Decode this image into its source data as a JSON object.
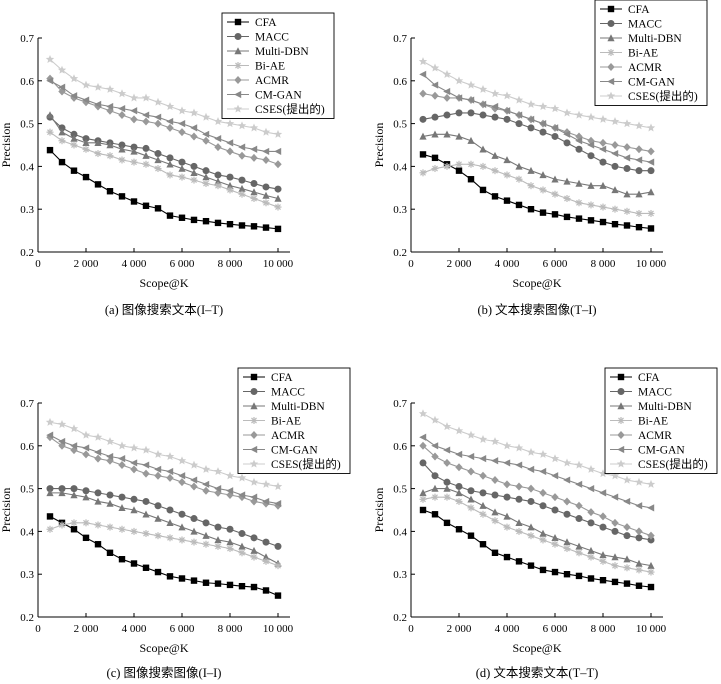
{
  "chart_data": [
    {
      "type": "line",
      "caption": "(a) 图像搜索文本(I–T)",
      "xlabel": "Scope@K",
      "ylabel": "Precision",
      "xlim": [
        0,
        10500
      ],
      "ylim": [
        0.2,
        0.7
      ],
      "xticks": [
        0,
        2000,
        4000,
        6000,
        8000,
        10000
      ],
      "xtick_labels": [
        "0",
        "2 000",
        "4 000",
        "6 000",
        "8 000",
        "10 000"
      ],
      "yticks": [
        0.2,
        0.3,
        0.4,
        0.5,
        0.6,
        0.7
      ],
      "ytick_labels": [
        "0.2",
        "0.3",
        "0.4",
        "0.5",
        "0.6",
        "0.7"
      ],
      "legend": "top-right",
      "x": [
        500,
        1000,
        1500,
        2000,
        2500,
        3000,
        3500,
        4000,
        4500,
        5000,
        5500,
        6000,
        6500,
        7000,
        7500,
        8000,
        8500,
        9000,
        9500,
        10000
      ],
      "series": [
        {
          "name": "CFA",
          "values": [
            0.438,
            0.41,
            0.39,
            0.375,
            0.358,
            0.342,
            0.33,
            0.318,
            0.308,
            0.302,
            0.285,
            0.28,
            0.275,
            0.272,
            0.268,
            0.265,
            0.262,
            0.26,
            0.257,
            0.254
          ]
        },
        {
          "name": "MACC",
          "values": [
            0.515,
            0.49,
            0.475,
            0.465,
            0.46,
            0.455,
            0.45,
            0.445,
            0.442,
            0.43,
            0.42,
            0.41,
            0.4,
            0.39,
            0.38,
            0.375,
            0.368,
            0.36,
            0.352,
            0.347
          ]
        },
        {
          "name": "Multi-DBN",
          "values": [
            0.52,
            0.48,
            0.465,
            0.455,
            0.455,
            0.45,
            0.44,
            0.435,
            0.425,
            0.415,
            0.405,
            0.395,
            0.385,
            0.375,
            0.365,
            0.355,
            0.348,
            0.34,
            0.332,
            0.325
          ]
        },
        {
          "name": "Bi-AE",
          "values": [
            0.48,
            0.46,
            0.45,
            0.44,
            0.43,
            0.425,
            0.415,
            0.41,
            0.405,
            0.395,
            0.38,
            0.375,
            0.368,
            0.36,
            0.355,
            0.345,
            0.335,
            0.325,
            0.315,
            0.305
          ]
        },
        {
          "name": "ACMR",
          "values": [
            0.605,
            0.575,
            0.56,
            0.55,
            0.54,
            0.53,
            0.52,
            0.51,
            0.505,
            0.5,
            0.49,
            0.48,
            0.47,
            0.46,
            0.445,
            0.435,
            0.425,
            0.42,
            0.415,
            0.405
          ]
        },
        {
          "name": "CM-GAN",
          "values": [
            0.6,
            0.585,
            0.565,
            0.555,
            0.545,
            0.54,
            0.535,
            0.53,
            0.52,
            0.515,
            0.505,
            0.5,
            0.49,
            0.475,
            0.465,
            0.455,
            0.445,
            0.44,
            0.435,
            0.435
          ]
        },
        {
          "name": "CSES(提出的)",
          "values": [
            0.65,
            0.625,
            0.605,
            0.59,
            0.585,
            0.58,
            0.57,
            0.56,
            0.56,
            0.55,
            0.54,
            0.53,
            0.525,
            0.515,
            0.505,
            0.5,
            0.495,
            0.49,
            0.48,
            0.475
          ]
        }
      ]
    },
    {
      "type": "line",
      "caption": "(b) 文本搜索图像(T–I)",
      "xlabel": "Scope@K",
      "ylabel": "Precision",
      "xlim": [
        0,
        10500
      ],
      "ylim": [
        0.2,
        0.7
      ],
      "xticks": [
        0,
        2000,
        4000,
        6000,
        8000,
        10000
      ],
      "xtick_labels": [
        "0",
        "2 000",
        "4 000",
        "6 000",
        "8 000",
        "10 000"
      ],
      "yticks": [
        0.2,
        0.3,
        0.4,
        0.5,
        0.6,
        0.7
      ],
      "ytick_labels": [
        "0.2",
        "0.3",
        "0.4",
        "0.5",
        "0.6",
        "0.7"
      ],
      "legend": "top-right",
      "x": [
        500,
        1000,
        1500,
        2000,
        2500,
        3000,
        3500,
        4000,
        4500,
        5000,
        5500,
        6000,
        6500,
        7000,
        7500,
        8000,
        8500,
        9000,
        9500,
        10000
      ],
      "series": [
        {
          "name": "CFA",
          "values": [
            0.428,
            0.42,
            0.405,
            0.39,
            0.37,
            0.345,
            0.33,
            0.32,
            0.31,
            0.3,
            0.292,
            0.288,
            0.282,
            0.278,
            0.274,
            0.27,
            0.265,
            0.262,
            0.258,
            0.255
          ]
        },
        {
          "name": "MACC",
          "values": [
            0.51,
            0.515,
            0.52,
            0.525,
            0.525,
            0.52,
            0.515,
            0.51,
            0.5,
            0.49,
            0.48,
            0.47,
            0.455,
            0.44,
            0.425,
            0.41,
            0.4,
            0.395,
            0.39,
            0.39
          ]
        },
        {
          "name": "Multi-DBN",
          "values": [
            0.47,
            0.475,
            0.475,
            0.47,
            0.46,
            0.44,
            0.425,
            0.415,
            0.4,
            0.39,
            0.38,
            0.37,
            0.365,
            0.36,
            0.355,
            0.355,
            0.345,
            0.335,
            0.335,
            0.34
          ]
        },
        {
          "name": "Bi-AE",
          "values": [
            0.385,
            0.395,
            0.4,
            0.405,
            0.405,
            0.4,
            0.39,
            0.38,
            0.37,
            0.355,
            0.345,
            0.335,
            0.325,
            0.315,
            0.31,
            0.305,
            0.3,
            0.295,
            0.29,
            0.29
          ]
        },
        {
          "name": "ACMR",
          "values": [
            0.57,
            0.565,
            0.56,
            0.56,
            0.555,
            0.545,
            0.535,
            0.53,
            0.52,
            0.51,
            0.5,
            0.49,
            0.48,
            0.47,
            0.46,
            0.455,
            0.45,
            0.445,
            0.44,
            0.435
          ]
        },
        {
          "name": "CM-GAN",
          "values": [
            0.615,
            0.59,
            0.575,
            0.56,
            0.555,
            0.545,
            0.54,
            0.53,
            0.52,
            0.51,
            0.5,
            0.49,
            0.475,
            0.46,
            0.45,
            0.44,
            0.43,
            0.42,
            0.415,
            0.41
          ]
        },
        {
          "name": "CSES(提出的)",
          "values": [
            0.645,
            0.63,
            0.615,
            0.6,
            0.59,
            0.58,
            0.57,
            0.565,
            0.555,
            0.545,
            0.54,
            0.535,
            0.525,
            0.52,
            0.515,
            0.51,
            0.505,
            0.5,
            0.495,
            0.49
          ]
        }
      ]
    },
    {
      "type": "line",
      "caption": "(c) 图像搜索图像(I–I)",
      "xlabel": "Scope@K",
      "ylabel": "Precision",
      "xlim": [
        0,
        10500
      ],
      "ylim": [
        0.2,
        0.7
      ],
      "xticks": [
        0,
        2000,
        4000,
        6000,
        8000,
        10000
      ],
      "xtick_labels": [
        "0",
        "2 000",
        "4 000",
        "6 000",
        "8 000",
        "10 000"
      ],
      "yticks": [
        0.2,
        0.3,
        0.4,
        0.5,
        0.6,
        0.7
      ],
      "ytick_labels": [
        "0.2",
        "0.3",
        "0.4",
        "0.5",
        "0.6",
        "0.7"
      ],
      "legend": "top-right",
      "x": [
        500,
        1000,
        1500,
        2000,
        2500,
        3000,
        3500,
        4000,
        4500,
        5000,
        5500,
        6000,
        6500,
        7000,
        7500,
        8000,
        8500,
        9000,
        9500,
        10000
      ],
      "series": [
        {
          "name": "CFA",
          "values": [
            0.435,
            0.42,
            0.405,
            0.385,
            0.37,
            0.35,
            0.335,
            0.325,
            0.315,
            0.305,
            0.295,
            0.29,
            0.285,
            0.28,
            0.278,
            0.275,
            0.272,
            0.27,
            0.262,
            0.25
          ]
        },
        {
          "name": "MACC",
          "values": [
            0.5,
            0.5,
            0.5,
            0.495,
            0.49,
            0.485,
            0.48,
            0.475,
            0.47,
            0.46,
            0.45,
            0.44,
            0.43,
            0.42,
            0.41,
            0.405,
            0.395,
            0.385,
            0.375,
            0.365
          ]
        },
        {
          "name": "Multi-DBN",
          "values": [
            0.49,
            0.49,
            0.485,
            0.48,
            0.47,
            0.465,
            0.455,
            0.45,
            0.44,
            0.43,
            0.42,
            0.41,
            0.4,
            0.39,
            0.38,
            0.375,
            0.365,
            0.355,
            0.34,
            0.325
          ]
        },
        {
          "name": "Bi-AE",
          "values": [
            0.405,
            0.415,
            0.42,
            0.42,
            0.415,
            0.41,
            0.405,
            0.4,
            0.395,
            0.39,
            0.385,
            0.38,
            0.375,
            0.37,
            0.365,
            0.36,
            0.35,
            0.34,
            0.33,
            0.32
          ]
        },
        {
          "name": "ACMR",
          "values": [
            0.62,
            0.6,
            0.59,
            0.58,
            0.57,
            0.565,
            0.555,
            0.545,
            0.535,
            0.53,
            0.525,
            0.515,
            0.505,
            0.495,
            0.49,
            0.485,
            0.48,
            0.47,
            0.465,
            0.46
          ]
        },
        {
          "name": "CM-GAN",
          "values": [
            0.625,
            0.61,
            0.6,
            0.595,
            0.585,
            0.575,
            0.57,
            0.56,
            0.555,
            0.545,
            0.54,
            0.53,
            0.52,
            0.51,
            0.5,
            0.495,
            0.485,
            0.48,
            0.47,
            0.465
          ]
        },
        {
          "name": "CSES(提出的)",
          "values": [
            0.655,
            0.65,
            0.64,
            0.625,
            0.62,
            0.61,
            0.6,
            0.595,
            0.59,
            0.58,
            0.575,
            0.565,
            0.555,
            0.545,
            0.54,
            0.53,
            0.525,
            0.515,
            0.51,
            0.505
          ]
        }
      ]
    },
    {
      "type": "line",
      "caption": "(d) 文本搜索文本(T–T)",
      "xlabel": "Scope@K",
      "ylabel": "Precision",
      "xlim": [
        0,
        10500
      ],
      "ylim": [
        0.2,
        0.7
      ],
      "xticks": [
        0,
        2000,
        4000,
        6000,
        8000,
        10000
      ],
      "xtick_labels": [
        "0",
        "2 000",
        "4 000",
        "6 000",
        "8 000",
        "10 000"
      ],
      "yticks": [
        0.2,
        0.3,
        0.4,
        0.5,
        0.6,
        0.7
      ],
      "ytick_labels": [
        "0.2",
        "0.3",
        "0.4",
        "0.5",
        "0.6",
        "0.7"
      ],
      "legend": "top-right",
      "x": [
        500,
        1000,
        1500,
        2000,
        2500,
        3000,
        3500,
        4000,
        4500,
        5000,
        5500,
        6000,
        6500,
        7000,
        7500,
        8000,
        8500,
        9000,
        9500,
        10000
      ],
      "series": [
        {
          "name": "CFA",
          "values": [
            0.45,
            0.44,
            0.42,
            0.405,
            0.39,
            0.37,
            0.35,
            0.34,
            0.33,
            0.32,
            0.31,
            0.305,
            0.3,
            0.296,
            0.29,
            0.286,
            0.282,
            0.278,
            0.273,
            0.27
          ]
        },
        {
          "name": "MACC",
          "values": [
            0.56,
            0.53,
            0.515,
            0.505,
            0.495,
            0.49,
            0.485,
            0.48,
            0.475,
            0.47,
            0.46,
            0.45,
            0.44,
            0.43,
            0.42,
            0.41,
            0.4,
            0.39,
            0.385,
            0.38
          ]
        },
        {
          "name": "Multi-DBN",
          "values": [
            0.49,
            0.5,
            0.5,
            0.49,
            0.475,
            0.46,
            0.445,
            0.435,
            0.42,
            0.41,
            0.395,
            0.385,
            0.375,
            0.365,
            0.355,
            0.345,
            0.34,
            0.335,
            0.325,
            0.32
          ]
        },
        {
          "name": "Bi-AE",
          "values": [
            0.475,
            0.48,
            0.48,
            0.47,
            0.455,
            0.44,
            0.425,
            0.41,
            0.4,
            0.39,
            0.38,
            0.37,
            0.36,
            0.35,
            0.34,
            0.33,
            0.32,
            0.315,
            0.31,
            0.305
          ]
        },
        {
          "name": "ACMR",
          "values": [
            0.6,
            0.575,
            0.56,
            0.55,
            0.54,
            0.53,
            0.52,
            0.51,
            0.505,
            0.5,
            0.49,
            0.48,
            0.47,
            0.46,
            0.445,
            0.435,
            0.42,
            0.41,
            0.4,
            0.39
          ]
        },
        {
          "name": "CM-GAN",
          "values": [
            0.62,
            0.6,
            0.59,
            0.58,
            0.575,
            0.57,
            0.565,
            0.56,
            0.555,
            0.545,
            0.54,
            0.53,
            0.52,
            0.51,
            0.5,
            0.49,
            0.48,
            0.47,
            0.46,
            0.455
          ]
        },
        {
          "name": "CSES(提出的)",
          "values": [
            0.675,
            0.66,
            0.645,
            0.635,
            0.625,
            0.615,
            0.61,
            0.6,
            0.595,
            0.585,
            0.58,
            0.57,
            0.56,
            0.555,
            0.545,
            0.535,
            0.53,
            0.52,
            0.515,
            0.51
          ]
        }
      ]
    }
  ],
  "series_style": [
    {
      "name": "CFA",
      "marker": "square",
      "color": "#000000"
    },
    {
      "name": "MACC",
      "marker": "circle",
      "color": "#666666"
    },
    {
      "name": "Multi-DBN",
      "marker": "triangle-up",
      "color": "#777777"
    },
    {
      "name": "Bi-AE",
      "marker": "star",
      "color": "#bbbbbb"
    },
    {
      "name": "ACMR",
      "marker": "diamond",
      "color": "#999999"
    },
    {
      "name": "CM-GAN",
      "marker": "triangle-left",
      "color": "#888888"
    },
    {
      "name": "CSES(提出的)",
      "marker": "pentagram",
      "color": "#cccccc"
    }
  ]
}
